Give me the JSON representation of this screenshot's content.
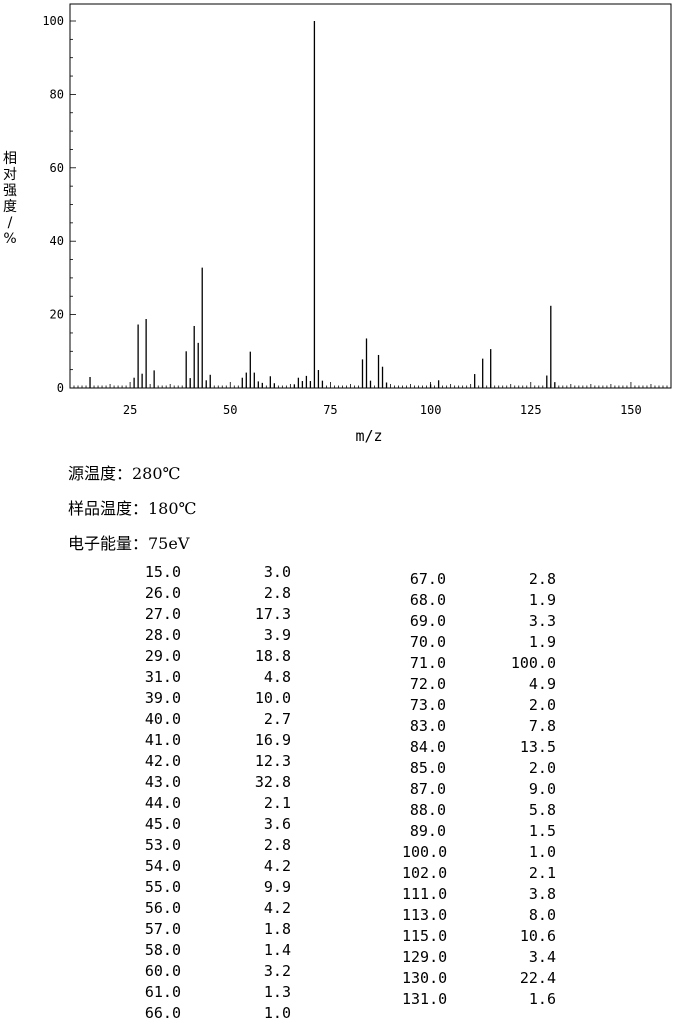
{
  "chart_data": {
    "type": "bar",
    "xlabel": "m/z",
    "ylabel": "相对强度/%",
    "xlim": [
      10,
      160
    ],
    "ylim": [
      0,
      100
    ],
    "xticks": [
      25,
      50,
      75,
      100,
      125,
      150
    ],
    "yticks": [
      0,
      20,
      40,
      60,
      80,
      100
    ],
    "grid": false,
    "points": [
      {
        "x": 15.0,
        "y": 3.0
      },
      {
        "x": 26.0,
        "y": 2.8
      },
      {
        "x": 27.0,
        "y": 17.3
      },
      {
        "x": 28.0,
        "y": 3.9
      },
      {
        "x": 29.0,
        "y": 18.8
      },
      {
        "x": 31.0,
        "y": 4.8
      },
      {
        "x": 39.0,
        "y": 10.0
      },
      {
        "x": 40.0,
        "y": 2.7
      },
      {
        "x": 41.0,
        "y": 16.9
      },
      {
        "x": 42.0,
        "y": 12.3
      },
      {
        "x": 43.0,
        "y": 32.8
      },
      {
        "x": 44.0,
        "y": 2.1
      },
      {
        "x": 45.0,
        "y": 3.6
      },
      {
        "x": 53.0,
        "y": 2.8
      },
      {
        "x": 54.0,
        "y": 4.2
      },
      {
        "x": 55.0,
        "y": 9.9
      },
      {
        "x": 56.0,
        "y": 4.2
      },
      {
        "x": 57.0,
        "y": 1.8
      },
      {
        "x": 58.0,
        "y": 1.4
      },
      {
        "x": 60.0,
        "y": 3.2
      },
      {
        "x": 61.0,
        "y": 1.3
      },
      {
        "x": 66.0,
        "y": 1.0
      },
      {
        "x": 67.0,
        "y": 2.8
      },
      {
        "x": 68.0,
        "y": 1.9
      },
      {
        "x": 69.0,
        "y": 3.3
      },
      {
        "x": 70.0,
        "y": 1.9
      },
      {
        "x": 71.0,
        "y": 100.0
      },
      {
        "x": 72.0,
        "y": 4.9
      },
      {
        "x": 73.0,
        "y": 2.0
      },
      {
        "x": 83.0,
        "y": 7.8
      },
      {
        "x": 84.0,
        "y": 13.5
      },
      {
        "x": 85.0,
        "y": 2.0
      },
      {
        "x": 87.0,
        "y": 9.0
      },
      {
        "x": 88.0,
        "y": 5.8
      },
      {
        "x": 89.0,
        "y": 1.5
      },
      {
        "x": 100.0,
        "y": 1.0
      },
      {
        "x": 102.0,
        "y": 2.1
      },
      {
        "x": 111.0,
        "y": 3.8
      },
      {
        "x": 113.0,
        "y": 8.0
      },
      {
        "x": 115.0,
        "y": 10.6
      },
      {
        "x": 129.0,
        "y": 3.4
      },
      {
        "x": 130.0,
        "y": 22.4
      },
      {
        "x": 131.0,
        "y": 1.6
      }
    ]
  },
  "conditions": [
    "源温度：280℃",
    "样品温度：180℃",
    "电子能量：75eV"
  ],
  "peak_table": {
    "left": [
      [
        "15.0",
        "3.0"
      ],
      [
        "26.0",
        "2.8"
      ],
      [
        "27.0",
        "17.3"
      ],
      [
        "28.0",
        "3.9"
      ],
      [
        "29.0",
        "18.8"
      ],
      [
        "31.0",
        "4.8"
      ],
      [
        "39.0",
        "10.0"
      ],
      [
        "40.0",
        "2.7"
      ],
      [
        "41.0",
        "16.9"
      ],
      [
        "42.0",
        "12.3"
      ],
      [
        "43.0",
        "32.8"
      ],
      [
        "44.0",
        "2.1"
      ],
      [
        "45.0",
        "3.6"
      ],
      [
        "53.0",
        "2.8"
      ],
      [
        "54.0",
        "4.2"
      ],
      [
        "55.0",
        "9.9"
      ],
      [
        "56.0",
        "4.2"
      ],
      [
        "57.0",
        "1.8"
      ],
      [
        "58.0",
        "1.4"
      ],
      [
        "60.0",
        "3.2"
      ],
      [
        "61.0",
        "1.3"
      ],
      [
        "66.0",
        "1.0"
      ]
    ],
    "right": [
      [
        "67.0",
        "2.8"
      ],
      [
        "68.0",
        "1.9"
      ],
      [
        "69.0",
        "3.3"
      ],
      [
        "70.0",
        "1.9"
      ],
      [
        "71.0",
        "100.0"
      ],
      [
        "72.0",
        "4.9"
      ],
      [
        "73.0",
        "2.0"
      ],
      [
        "83.0",
        "7.8"
      ],
      [
        "84.0",
        "13.5"
      ],
      [
        "85.0",
        "2.0"
      ],
      [
        "87.0",
        "9.0"
      ],
      [
        "88.0",
        "5.8"
      ],
      [
        "89.0",
        "1.5"
      ],
      [
        "100.0",
        "1.0"
      ],
      [
        "102.0",
        "2.1"
      ],
      [
        "111.0",
        "3.8"
      ],
      [
        "113.0",
        "8.0"
      ],
      [
        "115.0",
        "10.6"
      ],
      [
        "129.0",
        "3.4"
      ],
      [
        "130.0",
        "22.4"
      ],
      [
        "131.0",
        "1.6"
      ]
    ]
  }
}
